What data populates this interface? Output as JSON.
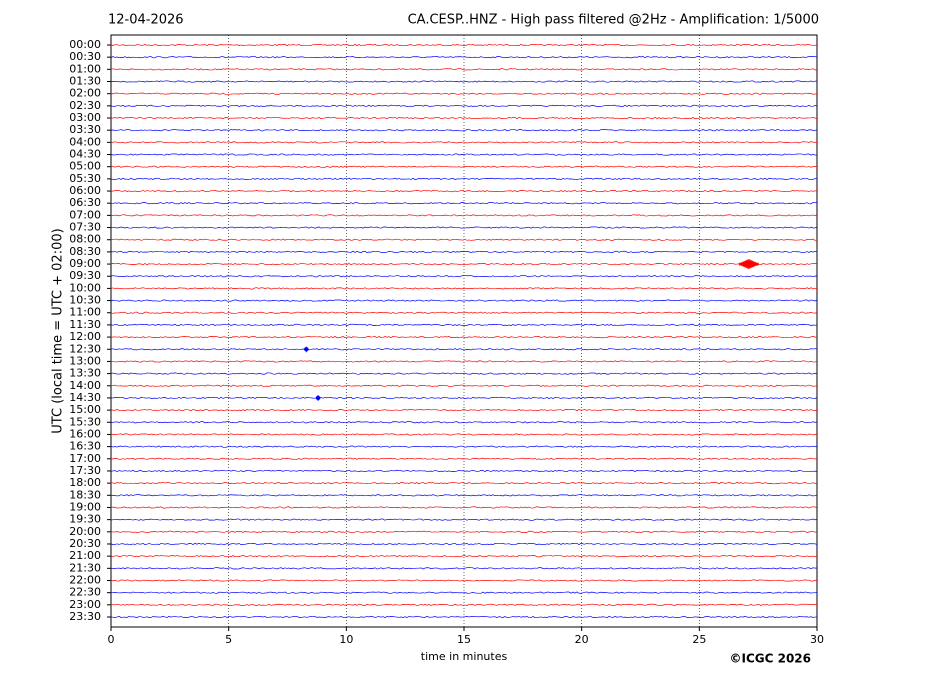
{
  "chart_data": {
    "type": "helicorder",
    "date": "12-04-2026",
    "title": "CA.CESP..HNZ - High pass filtered @2Hz - Amplification: 1/5000",
    "x_label": "time in minutes",
    "y_label": "UTC (local time = UTC + 02:00)",
    "credit": "©ICGC 2026",
    "categories": [
      "00:00",
      "00:30",
      "01:00",
      "01:30",
      "02:00",
      "02:30",
      "03:00",
      "03:30",
      "04:00",
      "04:30",
      "05:00",
      "05:30",
      "06:00",
      "06:30",
      "07:00",
      "07:30",
      "08:00",
      "08:30",
      "09:00",
      "09:30",
      "10:00",
      "10:30",
      "11:00",
      "11:30",
      "12:00",
      "12:30",
      "13:00",
      "13:30",
      "14:00",
      "14:30",
      "15:00",
      "15:30",
      "16:00",
      "16:30",
      "17:00",
      "17:30",
      "18:00",
      "18:30",
      "19:00",
      "19:30",
      "20:00",
      "20:30",
      "21:00",
      "21:30",
      "22:00",
      "22:30",
      "23:00",
      "23:30"
    ],
    "colors": [
      "#ff0000",
      "#0000ff"
    ],
    "xlim": [
      0,
      30
    ],
    "xticks": [
      0,
      5,
      10,
      15,
      20,
      25,
      30
    ],
    "grid": true,
    "events": [
      {
        "row": "09:00",
        "x": 27.1
      },
      {
        "row": "14:30",
        "x": 8.8
      },
      {
        "row": "12:30",
        "x": 8.3
      }
    ]
  }
}
